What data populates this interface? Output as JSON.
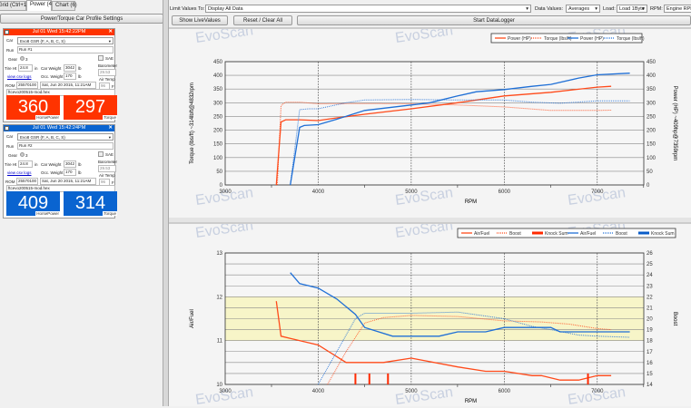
{
  "left_tabs": [
    {
      "label": "Grid (Ctrl+1)"
    },
    {
      "label": "Power (4)",
      "active": true
    },
    {
      "label": "Chart (6)"
    }
  ],
  "profile_button": "Power/Torque Car Profile Settings",
  "runs": [
    {
      "color": "#ff3300",
      "header": "Jul 01 Wed 15:42:22PM",
      "car_label": "Car",
      "car": "Evo8 GSR (F, A, B, C, S)",
      "run_label": "Run",
      "run": "Run #1",
      "gear_label": "Gear",
      "gear": "3",
      "sae": "SAE",
      "tire_label": "Tire Ht",
      "tire": "24.8",
      "tire_unit": "in",
      "weight_label": "Car Weight",
      "weight": "3042",
      "weight_unit": "lb",
      "baro_label": "Barometer",
      "baro": "29.53",
      "csv_link": "view csv logs",
      "occ_label": "Occ. Weight",
      "occ": "170",
      "occ_unit": "lb",
      "air_label": "Air Temp",
      "air": "96",
      "air_unit": "F",
      "rom_label": "ROM",
      "rom": "25570100",
      "date": "Sat, Jun 20 2015, 11:21AM",
      "file": "ftcevo200515-mod.hex",
      "hp": "360",
      "hp_label": "HorsePower",
      "tq": "297",
      "tq_label": "Torque"
    },
    {
      "color": "#0a64d0",
      "header": "Jul 01 Wed 15:42:24PM",
      "car_label": "Car",
      "car": "Evo8 GSR (F, A, B, C, S)",
      "run_label": "Run",
      "run": "Run #2",
      "gear_label": "Gear",
      "gear": "3",
      "sae": "SAE",
      "tire_label": "Tire Ht",
      "tire": "24.8",
      "tire_unit": "in",
      "weight_label": "Car Weight",
      "weight": "3042",
      "weight_unit": "lb",
      "baro_label": "Barometer",
      "baro": "29.53",
      "csv_link": "view csv logs",
      "occ_label": "Occ. Weight",
      "occ": "170",
      "occ_unit": "lb",
      "air_label": "Air Temp",
      "air": "96",
      "air_unit": "F",
      "rom_label": "ROM",
      "rom": "25570100",
      "date": "Sat, Jun 20 2015, 11:21AM",
      "file": "ftcevo200515-mod.hex",
      "hp": "409",
      "hp_label": "HorsePower",
      "tq": "314",
      "tq_label": "Torque"
    }
  ],
  "toolbar": {
    "limit_label": "Limit Values To:",
    "limit_value": "Display All Data",
    "data_values_label": "Data Values:",
    "data_values": "Averages",
    "load_label": "Load:",
    "load": "Load 1Byte",
    "rpm_label": "RPM:",
    "rpm": "Engine RPM",
    "show_live": "Show LiveValues",
    "reset": "Reset / Clear All",
    "start": "Start DataLogger"
  },
  "watermark": "EvoScan",
  "chart_data": [
    {
      "type": "line",
      "xlabel": "RPM",
      "ylabel": "Torque (lbs/ft) ~314lbft@4832rpm",
      "y2label": "Power (HP) ~409hp@7359rpm",
      "xlim": [
        3000,
        7500
      ],
      "ylim": [
        0,
        450
      ],
      "y2lim": [
        0,
        450
      ],
      "xticks": [
        "3000",
        "4000",
        "5000",
        "6000",
        "7000"
      ],
      "yticks": [
        "0",
        "50",
        "100",
        "150",
        "200",
        "250",
        "300",
        "350",
        "400",
        "450"
      ],
      "legend": "top-right",
      "grid": true,
      "series": [
        {
          "name": "Power (HP)",
          "color": "#ff4a1a",
          "style": "solid",
          "points": [
            [
              3550,
              0
            ],
            [
              3600,
              230
            ],
            [
              3650,
              238
            ],
            [
              3800,
              238
            ],
            [
              4000,
              235
            ],
            [
              4200,
              245
            ],
            [
              4500,
              258
            ],
            [
              5000,
              278
            ],
            [
              5500,
              300
            ],
            [
              5800,
              315
            ],
            [
              6000,
              325
            ],
            [
              6500,
              338
            ],
            [
              7000,
              357
            ],
            [
              7150,
              360
            ]
          ]
        },
        {
          "name": "Torque (lbs/ft)",
          "color": "#ff4a1a",
          "style": "dotted",
          "points": [
            [
              3560,
              0
            ],
            [
              3600,
              290
            ],
            [
              3650,
              302
            ],
            [
              3800,
              302
            ],
            [
              4000,
              296
            ],
            [
              4500,
              297
            ],
            [
              5000,
              296
            ],
            [
              5500,
              292
            ],
            [
              6000,
              285
            ],
            [
              6500,
              272
            ],
            [
              7000,
              272
            ],
            [
              7150,
              273
            ]
          ]
        },
        {
          "name": "Power (HP)",
          "color": "#1f6fd6",
          "style": "solid",
          "points": [
            [
              3700,
              0
            ],
            [
              3800,
              210
            ],
            [
              3850,
              217
            ],
            [
              4000,
              220
            ],
            [
              4200,
              240
            ],
            [
              4500,
              272
            ],
            [
              5000,
              292
            ],
            [
              5200,
              300
            ],
            [
              5500,
              325
            ],
            [
              5700,
              340
            ],
            [
              6000,
              348
            ],
            [
              6300,
              360
            ],
            [
              6500,
              367
            ],
            [
              6800,
              390
            ],
            [
              7000,
              402
            ],
            [
              7350,
              408
            ]
          ]
        },
        {
          "name": "Torque (lbs/ft)",
          "color": "#1f6fd6",
          "style": "dotted",
          "points": [
            [
              3700,
              0
            ],
            [
              3800,
              275
            ],
            [
              3900,
              278
            ],
            [
              4000,
              278
            ],
            [
              4300,
              300
            ],
            [
              4500,
              310
            ],
            [
              5000,
              312
            ],
            [
              5500,
              310
            ],
            [
              6000,
              310
            ],
            [
              6300,
              302
            ],
            [
              6600,
              298
            ],
            [
              7000,
              307
            ],
            [
              7350,
              307
            ]
          ]
        }
      ]
    },
    {
      "type": "line",
      "xlabel": "RPM",
      "ylabel": "Air/Fuel",
      "y2label": "Boost",
      "xlim": [
        3000,
        7500
      ],
      "ylim": [
        10,
        13
      ],
      "y2lim": [
        14,
        26
      ],
      "band": [
        11,
        12
      ],
      "band_color": "#f7f5c8",
      "xticks": [
        "3000",
        "4000",
        "5000",
        "6000",
        "7000"
      ],
      "yticks": [
        "10",
        "11",
        "12",
        "13"
      ],
      "y2ticks": [
        "14",
        "15",
        "16",
        "17",
        "18",
        "19",
        "20",
        "21",
        "22",
        "23",
        "24",
        "25",
        "26"
      ],
      "legend": "top-right",
      "grid": true,
      "series": [
        {
          "name": "Air/Fuel",
          "color": "#ff4a1a",
          "style": "solid",
          "axis": "left",
          "points": [
            [
              3550,
              11.9
            ],
            [
              3600,
              11.1
            ],
            [
              3700,
              11.05
            ],
            [
              4000,
              10.9
            ],
            [
              4300,
              10.5
            ],
            [
              4500,
              10.5
            ],
            [
              4700,
              10.5
            ],
            [
              5000,
              10.6
            ],
            [
              5500,
              10.4
            ],
            [
              5800,
              10.3
            ],
            [
              6000,
              10.3
            ],
            [
              6300,
              10.2
            ],
            [
              6400,
              10.2
            ],
            [
              6600,
              10.1
            ],
            [
              6800,
              10.1
            ],
            [
              7000,
              10.2
            ],
            [
              7150,
              10.2
            ]
          ]
        },
        {
          "name": "Boost",
          "color": "#ff4a1a",
          "style": "dotted",
          "axis": "right",
          "points": [
            [
              4100,
              14
            ],
            [
              4300,
              17
            ],
            [
              4500,
              19.6
            ],
            [
              4700,
              20.1
            ],
            [
              5000,
              20.3
            ],
            [
              5500,
              20.2
            ],
            [
              6000,
              19.8
            ],
            [
              6400,
              19.7
            ],
            [
              6700,
              19.5
            ],
            [
              7000,
              19.1
            ],
            [
              7150,
              19
            ]
          ]
        },
        {
          "name": "Knock Sum",
          "color": "#ff2a00",
          "style": "bar",
          "axis": "right",
          "points": [
            [
              4400,
              15
            ],
            [
              4550,
              15
            ],
            [
              4750,
              15
            ],
            [
              6900,
              15
            ]
          ]
        },
        {
          "name": "Air/Fuel",
          "color": "#1f6fd6",
          "style": "solid",
          "axis": "left",
          "points": [
            [
              3700,
              12.55
            ],
            [
              3800,
              12.3
            ],
            [
              4000,
              12.2
            ],
            [
              4200,
              11.95
            ],
            [
              4400,
              11.6
            ],
            [
              4500,
              11.3
            ],
            [
              4800,
              11.1
            ],
            [
              5000,
              11.1
            ],
            [
              5300,
              11.1
            ],
            [
              5500,
              11.2
            ],
            [
              5800,
              11.2
            ],
            [
              6000,
              11.3
            ],
            [
              6100,
              11.3
            ],
            [
              6500,
              11.3
            ],
            [
              6600,
              11.2
            ],
            [
              7000,
              11.2
            ],
            [
              7350,
              11.2
            ]
          ]
        },
        {
          "name": "Boost",
          "color": "#1f6fd6",
          "style": "dotted",
          "axis": "right",
          "points": [
            [
              4000,
              14
            ],
            [
              4200,
              17
            ],
            [
              4400,
              20
            ],
            [
              4500,
              20.5
            ],
            [
              5000,
              20.5
            ],
            [
              5500,
              20.6
            ],
            [
              6000,
              20
            ],
            [
              6300,
              19.3
            ],
            [
              6500,
              19
            ],
            [
              6800,
              18.5
            ],
            [
              7000,
              18.4
            ],
            [
              7350,
              18.3
            ]
          ]
        },
        {
          "name": "Knock Sum",
          "color": "#0a5cc8",
          "style": "bar",
          "axis": "right",
          "points": []
        }
      ]
    }
  ]
}
